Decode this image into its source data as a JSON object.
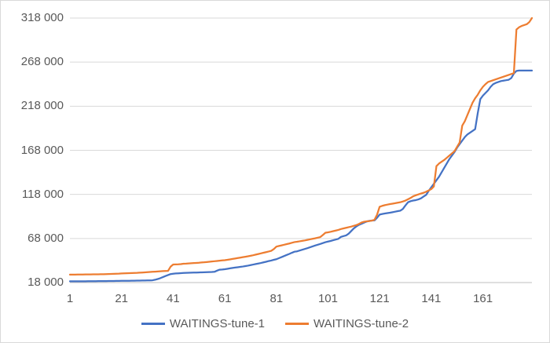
{
  "chart_data": {
    "type": "line",
    "title": "",
    "xlabel": "",
    "ylabel": "",
    "grid": "horizontal",
    "legend_position": "bottom",
    "x_axis": {
      "min": 1,
      "max": 180,
      "ticks": [
        1,
        21,
        41,
        61,
        81,
        101,
        121,
        141,
        161
      ]
    },
    "y_axis": {
      "min": 18000,
      "max": 318000,
      "ticks": [
        18000,
        68000,
        118000,
        168000,
        218000,
        268000,
        318000
      ],
      "tick_labels": [
        "18 000",
        "68 000",
        "118 000",
        "168 000",
        "218 000",
        "268 000",
        "318 000"
      ]
    },
    "series": [
      {
        "name": "WAITINGS-tune-1",
        "color": "#4472C4",
        "values": [
          19400,
          19400,
          19450,
          19450,
          19500,
          19500,
          19500,
          19550,
          19550,
          19600,
          19600,
          19650,
          19650,
          19700,
          19700,
          19750,
          19750,
          19800,
          19850,
          19900,
          19950,
          20000,
          20000,
          20050,
          20100,
          20150,
          20200,
          20250,
          20300,
          20350,
          20400,
          20500,
          20600,
          21200,
          22000,
          23000,
          24200,
          25400,
          26500,
          27600,
          28000,
          28300,
          28500,
          28700,
          28900,
          29000,
          29100,
          29200,
          29300,
          29400,
          29500,
          29600,
          29700,
          29800,
          29900,
          30000,
          30200,
          31500,
          32600,
          32800,
          33100,
          33600,
          34100,
          34600,
          35000,
          35400,
          35800,
          36200,
          36700,
          37200,
          37800,
          38400,
          39000,
          39600,
          40200,
          40900,
          41600,
          42400,
          43000,
          43800,
          44500,
          45700,
          46900,
          48100,
          49300,
          50500,
          51800,
          53000,
          53400,
          54300,
          55200,
          56100,
          57000,
          58000,
          59000,
          60000,
          60900,
          61800,
          62800,
          63800,
          64500,
          65200,
          66000,
          66800,
          67600,
          69800,
          70700,
          71500,
          73500,
          76500,
          79500,
          81700,
          83500,
          84700,
          86000,
          87200,
          88000,
          88300,
          88500,
          91500,
          95100,
          95800,
          96300,
          96800,
          97200,
          97800,
          98400,
          99000,
          99500,
          101500,
          105500,
          109100,
          110300,
          111000,
          111500,
          112300,
          113500,
          115500,
          117400,
          122000,
          126000,
          130000,
          134000,
          138000,
          143000,
          148000,
          153000,
          158000,
          162000,
          166000,
          171000,
          175000,
          179000,
          183000,
          186000,
          188000,
          190000,
          192000,
          210000,
          226000,
          230000,
          233000,
          236000,
          240000,
          243000,
          244500,
          245500,
          246500,
          247000,
          247500,
          248000,
          250000,
          255000,
          258000,
          258500,
          258500,
          258500,
          258500,
          258500,
          258500
        ]
      },
      {
        "name": "WAITINGS-tune-2",
        "color": "#ED7D31",
        "values": [
          27000,
          27000,
          27050,
          27100,
          27100,
          27150,
          27200,
          27200,
          27250,
          27300,
          27350,
          27400,
          27450,
          27500,
          27600,
          27700,
          27800,
          27900,
          28000,
          28100,
          28300,
          28500,
          28600,
          28700,
          28800,
          28900,
          29000,
          29200,
          29400,
          29600,
          29800,
          30000,
          30200,
          30400,
          30600,
          30800,
          31000,
          31100,
          31200,
          36000,
          38500,
          38600,
          38700,
          38900,
          39400,
          39500,
          39700,
          39900,
          40100,
          40300,
          40500,
          40800,
          41000,
          41300,
          41600,
          41900,
          42200,
          42500,
          42800,
          43100,
          43400,
          43800,
          44300,
          44800,
          45300,
          45800,
          46300,
          46800,
          47300,
          47800,
          48400,
          49000,
          49700,
          50400,
          51100,
          51800,
          52500,
          53200,
          54000,
          56000,
          58800,
          59500,
          60200,
          60900,
          61600,
          62300,
          63100,
          63900,
          64300,
          64800,
          65300,
          65800,
          66400,
          67000,
          67600,
          68200,
          68900,
          69600,
          72000,
          74500,
          75000,
          75600,
          76300,
          77000,
          77700,
          78700,
          79400,
          80100,
          80800,
          81500,
          82400,
          83200,
          84500,
          86100,
          87000,
          87500,
          87700,
          88300,
          89200,
          95000,
          104000,
          105000,
          105800,
          106400,
          107000,
          107500,
          108000,
          108600,
          109100,
          110000,
          111000,
          112500,
          114000,
          115900,
          117000,
          118000,
          119000,
          119800,
          121000,
          122500,
          124000,
          127000,
          150000,
          153000,
          155000,
          157000,
          159500,
          162000,
          164500,
          167000,
          172000,
          177000,
          196000,
          201000,
          208000,
          215000,
          222000,
          227000,
          231000,
          236000,
          240000,
          243000,
          245500,
          246500,
          247500,
          248500,
          249500,
          250500,
          251500,
          252500,
          253500,
          254500,
          255500,
          305000,
          307500,
          309000,
          310000,
          311000,
          313500,
          318000
        ]
      }
    ]
  },
  "colors": {
    "background": "#FFFFFF",
    "border": "#D9D9D9",
    "gridline": "#D9D9D9",
    "axis_line": "#BFBFBF",
    "tick_label": "#595959",
    "legend_text": "#595959"
  }
}
